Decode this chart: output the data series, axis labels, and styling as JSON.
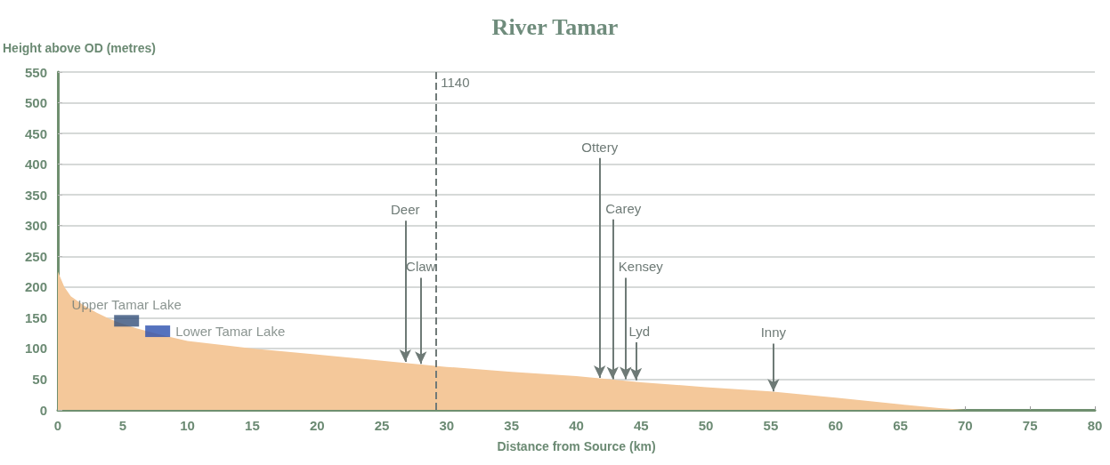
{
  "chart_data": {
    "type": "area",
    "title": "River Tamar",
    "xlabel": "Distance from Source (km)",
    "ylabel": "Height above OD (metres)",
    "xlim": [
      0,
      80
    ],
    "xticks": [
      0,
      5,
      10,
      15,
      20,
      25,
      30,
      35,
      40,
      45,
      50,
      55,
      60,
      65,
      70,
      75,
      80
    ],
    "ylim": [
      0,
      550
    ],
    "yticks": [
      0,
      50,
      100,
      150,
      200,
      250,
      300,
      350,
      400,
      450,
      500,
      550
    ],
    "grid": "y",
    "legend": false,
    "series": [
      {
        "color": "#f4c89a",
        "x": [
          0,
          0.5,
          1,
          2,
          3,
          4,
          5,
          6,
          8,
          10,
          15,
          20,
          25,
          30,
          35,
          40,
          45,
          50,
          55,
          60,
          65,
          68,
          70
        ],
        "values": [
          225,
          200,
          185,
          170,
          158,
          148,
          140,
          133,
          122,
          112,
          100,
          90,
          80,
          70,
          62,
          55,
          45,
          37,
          30,
          20,
          9,
          3,
          0
        ]
      },
      {
        "type": "scatter",
        "name": "Upper Tamar Lake",
        "marker": "square",
        "color": "#34507a",
        "x": [
          5.3
        ],
        "values": [
          145
        ]
      },
      {
        "type": "scatter",
        "name": "Lower Tamar Lake",
        "marker": "square",
        "color": "#2a4fae",
        "x": [
          7.7
        ],
        "values": [
          128
        ]
      }
    ],
    "ref_lines": [
      {
        "axis": "x",
        "value": 29.2,
        "line_style": "dashed",
        "color": "#707a78"
      }
    ],
    "annotations": [
      "1140",
      {
        "text": "Deer",
        "x": 26.8,
        "y": 78
      },
      {
        "text": "Claw",
        "x": 28,
        "y": 75
      },
      {
        "text": "Ottery",
        "x": 41.8,
        "y": 52
      },
      {
        "text": "Carey",
        "x": 42.8,
        "y": 50
      },
      {
        "text": "Kensey",
        "x": 43.8,
        "y": 50
      },
      {
        "text": "Lyd",
        "x": 44.6,
        "y": 48
      },
      {
        "text": "Inny",
        "x": 55.2,
        "y": 30
      }
    ]
  }
}
